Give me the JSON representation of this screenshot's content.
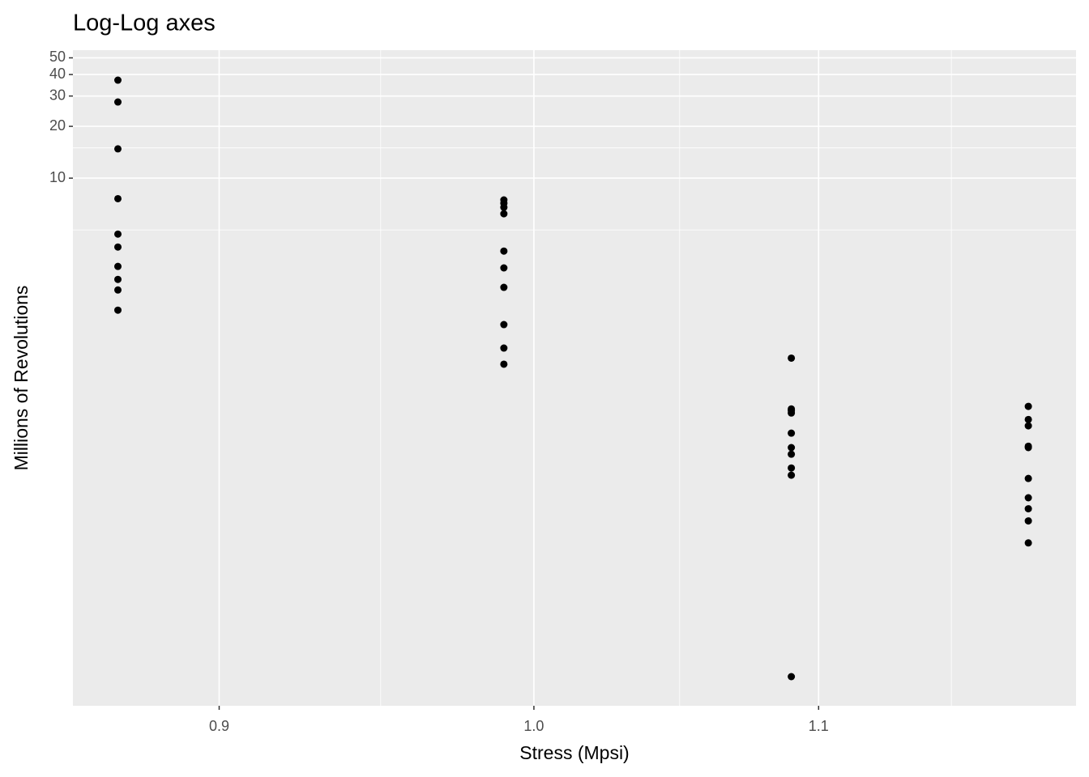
{
  "chart_data": {
    "type": "scatter",
    "title": "Log-Log axes",
    "x_label": "Stress (Mpsi)",
    "y_label": "Millions of Revolutions",
    "x": [
      0.87,
      0.87,
      0.87,
      0.87,
      0.87,
      0.87,
      0.87,
      0.87,
      0.87,
      0.87,
      0.99,
      0.99,
      0.99,
      0.99,
      0.99,
      0.99,
      0.99,
      0.99,
      0.99,
      0.99,
      1.09,
      1.09,
      1.09,
      1.09,
      1.09,
      1.09,
      1.09,
      1.09,
      1.09,
      1.09,
      1.18,
      1.18,
      1.18,
      1.18,
      1.18,
      1.18,
      1.18,
      1.18,
      1.18,
      1.18
    ],
    "values": [
      37.1,
      27.7,
      14.8,
      7.6,
      4.73,
      3.98,
      3.07,
      2.58,
      2.24,
      1.71,
      7.47,
      7.15,
      6.77,
      6.21,
      3.77,
      3.01,
      2.32,
      1.41,
      1.03,
      0.83,
      0.9,
      0.456,
      0.447,
      0.432,
      0.33,
      0.272,
      0.249,
      0.207,
      0.188,
      0.0127,
      0.472,
      0.396,
      0.364,
      0.277,
      0.272,
      0.18,
      0.139,
      0.12,
      0.102,
      0.076
    ],
    "color": "#000000",
    "xlim": [
      0.857,
      1.199
    ],
    "ylim": [
      0.0086,
      55.4
    ],
    "x_log": true,
    "y_log": true,
    "xticks": [
      0.9,
      {
        "value": 1.0,
        "label": "1.0"
      },
      1.1
    ],
    "yticks": [
      10,
      20,
      30,
      40,
      50
    ],
    "x_minor_grid": [
      0.95,
      1.05,
      1.15
    ],
    "y_minor_grid": [
      5,
      15
    ],
    "grid": true
  }
}
